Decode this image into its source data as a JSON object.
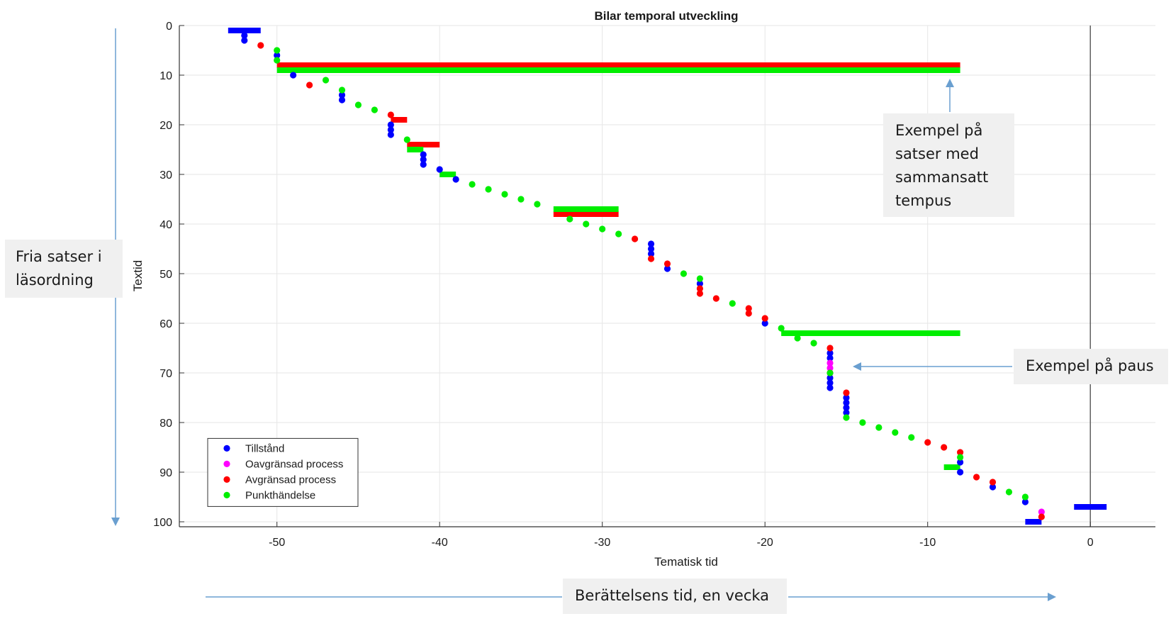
{
  "chart_data": {
    "type": "scatter",
    "title": "Bilar temporal utveckling",
    "xlabel": "Tematisk tid",
    "ylabel": "Textid",
    "xlim": [
      -56,
      4
    ],
    "ylim": [
      0,
      101
    ],
    "y_reversed": true,
    "grid": true,
    "xticks": [
      -50,
      -40,
      -30,
      -20,
      -10,
      0
    ],
    "yticks": [
      0,
      10,
      20,
      30,
      40,
      50,
      60,
      70,
      80,
      90,
      100
    ],
    "reference_line_x": 0,
    "legend": {
      "position": "bottom-left",
      "entries": [
        {
          "label": "Tillstånd",
          "color": "#0000ff"
        },
        {
          "label": "Oavgränsad process",
          "color": "#ff00ff"
        },
        {
          "label": "Avgränsad process",
          "color": "#ff0000"
        },
        {
          "label": "Punkthändelse",
          "color": "#00ee00"
        }
      ]
    },
    "series": [
      {
        "name": "Tillstånd",
        "color": "#0000ff",
        "points": [
          [
            -52,
            2
          ],
          [
            -52,
            3
          ],
          [
            -50,
            6
          ],
          [
            -49,
            10
          ],
          [
            -46,
            14
          ],
          [
            -46,
            15
          ],
          [
            -43,
            20
          ],
          [
            -43,
            21
          ],
          [
            -43,
            22
          ],
          [
            -41,
            26
          ],
          [
            -41,
            27
          ],
          [
            -41,
            28
          ],
          [
            -40,
            29
          ],
          [
            -39,
            31
          ],
          [
            -27,
            44
          ],
          [
            -27,
            45
          ],
          [
            -27,
            46
          ],
          [
            -26,
            49
          ],
          [
            -24,
            52
          ],
          [
            -20,
            60
          ],
          [
            -16,
            66
          ],
          [
            -16,
            67
          ],
          [
            -16,
            71
          ],
          [
            -16,
            72
          ],
          [
            -16,
            73
          ],
          [
            -15,
            75
          ],
          [
            -15,
            76
          ],
          [
            -15,
            77
          ],
          [
            -15,
            78
          ],
          [
            -8,
            88
          ],
          [
            -8,
            90
          ],
          [
            -6,
            93
          ],
          [
            -4,
            96
          ]
        ],
        "segments": [
          [
            -53,
            -51,
            1
          ],
          [
            -4,
            -3,
            100
          ],
          [
            -1,
            1,
            97
          ]
        ]
      },
      {
        "name": "Oavgränsad process",
        "color": "#ff00ff",
        "points": [
          [
            -16,
            68
          ],
          [
            -16,
            69
          ],
          [
            -3,
            98
          ]
        ],
        "segments": []
      },
      {
        "name": "Avgränsad process",
        "color": "#ff0000",
        "points": [
          [
            -51,
            4
          ],
          [
            -48,
            12
          ],
          [
            -43,
            18
          ],
          [
            -28,
            43
          ],
          [
            -27,
            47
          ],
          [
            -26,
            48
          ],
          [
            -24,
            53
          ],
          [
            -24,
            54
          ],
          [
            -23,
            55
          ],
          [
            -21,
            57
          ],
          [
            -21,
            58
          ],
          [
            -20,
            59
          ],
          [
            -16,
            65
          ],
          [
            -16,
            70
          ],
          [
            -15,
            74
          ],
          [
            -10,
            84
          ],
          [
            -9,
            85
          ],
          [
            -8,
            86
          ],
          [
            -7,
            91
          ],
          [
            -6,
            92
          ],
          [
            -3,
            99
          ]
        ],
        "segments": [
          [
            -50,
            -8,
            8
          ],
          [
            -43,
            -42,
            19
          ],
          [
            -42,
            -40,
            24
          ],
          [
            -33,
            -29,
            38
          ]
        ]
      },
      {
        "name": "Punkthändelse",
        "color": "#00ee00",
        "points": [
          [
            -50,
            5
          ],
          [
            -50,
            7
          ],
          [
            -47,
            11
          ],
          [
            -46,
            13
          ],
          [
            -45,
            16
          ],
          [
            -44,
            17
          ],
          [
            -42,
            23
          ],
          [
            -38,
            32
          ],
          [
            -37,
            33
          ],
          [
            -36,
            34
          ],
          [
            -35,
            35
          ],
          [
            -34,
            36
          ],
          [
            -32,
            39
          ],
          [
            -31,
            40
          ],
          [
            -30,
            41
          ],
          [
            -29,
            42
          ],
          [
            -25,
            50
          ],
          [
            -24,
            51
          ],
          [
            -22,
            56
          ],
          [
            -19,
            61
          ],
          [
            -18,
            63
          ],
          [
            -17,
            64
          ],
          [
            -16,
            70
          ],
          [
            -15,
            79
          ],
          [
            -14,
            80
          ],
          [
            -13,
            81
          ],
          [
            -12,
            82
          ],
          [
            -11,
            83
          ],
          [
            -8,
            87
          ],
          [
            -5,
            94
          ],
          [
            -4,
            95
          ]
        ],
        "segments": [
          [
            -50,
            -8,
            9
          ],
          [
            -42,
            -41,
            25
          ],
          [
            -40,
            -39,
            30
          ],
          [
            -33,
            -29,
            37
          ],
          [
            -19,
            -8,
            62
          ],
          [
            -9,
            -8,
            89
          ]
        ]
      }
    ]
  },
  "annotations": {
    "compound_tense": "Exempel på\nsatser med\nsammansatt\ntempus",
    "pause": "Exempel på paus",
    "reading_order": "Fria satser i\nläsordning",
    "narrative_time": "Berättelsens tid, en vecka"
  },
  "colors": {
    "arrow": "#6a9fd0",
    "callout_bg": "#f0f0f0",
    "axis": "#333333",
    "grid": "#e6e6e6"
  }
}
